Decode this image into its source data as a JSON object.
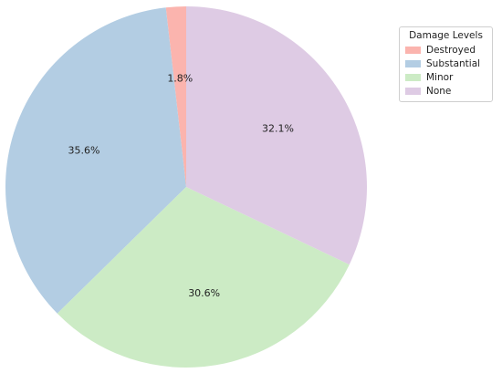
{
  "chart_data": {
    "type": "pie",
    "title": "",
    "categories": [
      "Destroyed",
      "Substantial",
      "Minor",
      "None"
    ],
    "values": [
      1.8,
      35.6,
      30.6,
      32.1
    ],
    "labels": [
      "1.8%",
      "35.6%",
      "30.6%",
      "32.1%"
    ],
    "colors": [
      "#fbb4ae",
      "#b3cde3",
      "#ccebc5",
      "#decbe4"
    ],
    "start_angle_deg": 90,
    "direction": "counterclockwise",
    "legend": {
      "title": "Damage Levels",
      "placement": "top-right",
      "entries": [
        "Destroyed",
        "Substantial",
        "Minor",
        "None"
      ]
    }
  }
}
